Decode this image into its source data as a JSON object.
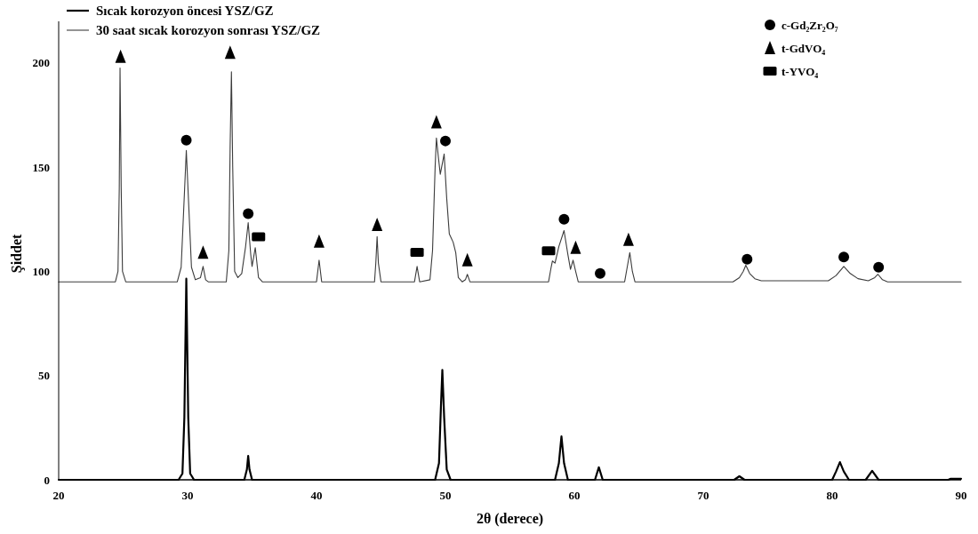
{
  "chart_data": {
    "type": "line",
    "xlabel": "2θ (derece)",
    "ylabel": "Şiddet",
    "xlim": [
      20,
      90
    ],
    "ylim": [
      0,
      220
    ],
    "xticks": [
      20,
      30,
      40,
      50,
      60,
      70,
      80,
      90
    ],
    "yticks": [
      0,
      50,
      100,
      150,
      200
    ],
    "grid": false,
    "legend": "top",
    "series": [
      {
        "name": "Sıcak korozyon öncesi YSZ/GZ",
        "color": "#000000",
        "x": [
          20,
          29.3,
          29.6,
          29.75,
          29.9,
          30.05,
          30.2,
          30.5,
          34.4,
          34.6,
          34.7,
          34.8,
          35.0,
          49.2,
          49.5,
          49.65,
          49.76,
          49.9,
          50.1,
          50.4,
          58.5,
          58.8,
          59.0,
          59.2,
          59.5,
          61.6,
          61.9,
          62.2,
          72.4,
          72.8,
          73.2,
          80.0,
          80.3,
          80.6,
          80.9,
          81.3,
          82.6,
          83.1,
          83.6,
          89.0,
          89.2,
          90
        ],
        "values": [
          0,
          0,
          3,
          30,
          96.5,
          30,
          3,
          0,
          0,
          5,
          11.5,
          5,
          0,
          0,
          8,
          35,
          52.7,
          30,
          5,
          0,
          0,
          8,
          20.9,
          8,
          0,
          0,
          6,
          0,
          0,
          1.7,
          0,
          0,
          4,
          8.5,
          4,
          0,
          0,
          4.3,
          0,
          0,
          0.5,
          0.5
        ]
      },
      {
        "name": "30 saat sıcak korozyon sonrası YSZ/GZ",
        "color": "#3c3c3c",
        "x": [
          20,
          24.4,
          24.6,
          24.7,
          24.76,
          24.85,
          24.95,
          25.2,
          29.2,
          29.5,
          29.7,
          29.9,
          30.1,
          30.3,
          30.6,
          31.0,
          31.2,
          31.4,
          31.6,
          33.0,
          33.2,
          33.3,
          33.4,
          33.5,
          33.65,
          33.9,
          34.2,
          34.5,
          34.7,
          34.9,
          35.0,
          35.25,
          35.5,
          35.8,
          40.0,
          40.2,
          40.4,
          44.5,
          44.6,
          44.7,
          44.8,
          45.0,
          47.6,
          47.8,
          48.0,
          48.8,
          49.0,
          49.2,
          49.3,
          49.45,
          49.6,
          49.9,
          50.1,
          50.3,
          50.6,
          50.8,
          51.0,
          51.3,
          51.55,
          51.7,
          51.9,
          58.0,
          58.2,
          58.3,
          58.5,
          58.8,
          59.2,
          59.5,
          59.7,
          59.9,
          60.1,
          60.3,
          63.9,
          64.1,
          64.3,
          64.5,
          64.7,
          72.3,
          72.8,
          73.1,
          73.3,
          73.6,
          74.0,
          74.5,
          79.7,
          80.3,
          80.9,
          81.4,
          82.0,
          82.8,
          83.3,
          83.55,
          83.9,
          84.3,
          90
        ],
        "values": [
          95,
          95,
          100,
          140,
          197.6,
          140,
          100,
          95,
          95,
          102,
          130,
          158,
          130,
          102,
          96,
          97,
          102.4,
          96,
          95,
          95,
          110,
          160,
          195.8,
          150,
          100,
          97,
          99,
          112,
          123.4,
          108,
          102.4,
          111.4,
          97,
          95,
          95,
          105.4,
          95,
          95,
          104,
          116.7,
          104,
          95,
          95,
          102.4,
          95,
          96,
          110,
          150,
          164,
          155,
          146.6,
          156.3,
          135,
          118,
          114,
          109,
          97,
          95,
          96,
          98.6,
          95,
          95,
          102,
          105,
          104,
          112,
          119.6,
          108,
          101,
          105.4,
          100,
          95,
          95,
          102,
          109,
          100,
          95,
          95,
          97,
          100,
          103,
          99,
          96.5,
          95.5,
          95.5,
          98,
          102.4,
          99,
          96.5,
          95.5,
          97,
          98.6,
          96,
          95,
          95
        ]
      },
      {
        "name": "c-Gd₂Zr₂O₇",
        "type": "scatter",
        "marker": "circle",
        "color": "#000000",
        "x": [
          29.9,
          34.7,
          50.0,
          59.2,
          62.0,
          73.4,
          80.9,
          83.6
        ],
        "values": [
          163,
          127.7,
          162.6,
          125,
          99,
          105.8,
          106.9,
          102
        ]
      },
      {
        "name": "t-GdVO₄",
        "type": "scatter",
        "marker": "triangle",
        "color": "#000000",
        "x": [
          24.8,
          31.2,
          33.3,
          40.2,
          44.7,
          49.3,
          51.7,
          60.1,
          64.2
        ],
        "values": [
          203,
          109,
          205,
          114.4,
          122.4,
          171.6,
          105.4,
          111.4,
          115.2
        ]
      },
      {
        "name": "t-YVO₄",
        "type": "scatter",
        "marker": "square",
        "color": "#000000",
        "x": [
          35.5,
          47.8,
          58.0
        ],
        "values": [
          116.6,
          109.2,
          109.9
        ]
      }
    ]
  }
}
